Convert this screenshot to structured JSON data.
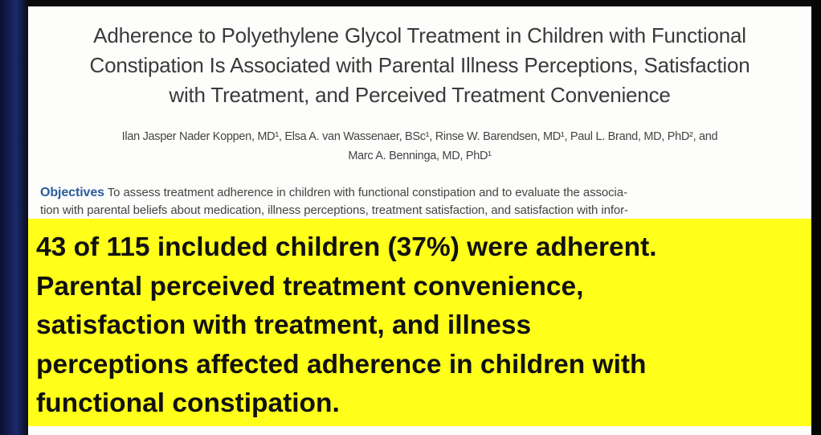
{
  "header": {
    "title": [
      "Adherence to Polyethylene Glycol Treatment in Children with Functional",
      "Constipation Is Associated with Parental Illness Perceptions, Satisfaction",
      "with Treatment, and Perceived Treatment Convenience"
    ],
    "authors": [
      "Ilan Jasper Nader Koppen, MD¹, Elsa A. van Wassenaer, BSc¹, Rinse W. Barendsen, MD¹, Paul L. Brand, MD, PhD², and",
      "Marc A. Benninga, MD, PhD¹"
    ]
  },
  "objectives": {
    "label": "Objectives",
    "lines": [
      "To assess treatment adherence in children with functional constipation and to evaluate the associa-",
      "tion with parental beliefs about medication, illness perceptions, treatment satisfaction, and satisfaction with infor-"
    ]
  },
  "overlay": {
    "lines": [
      "43 of 115 included children (37%) were adherent.",
      "Parental perceived treatment convenience,",
      "satisfaction with treatment, and illness",
      "perceptions affected adherence in children with",
      "functional constipation."
    ]
  }
}
